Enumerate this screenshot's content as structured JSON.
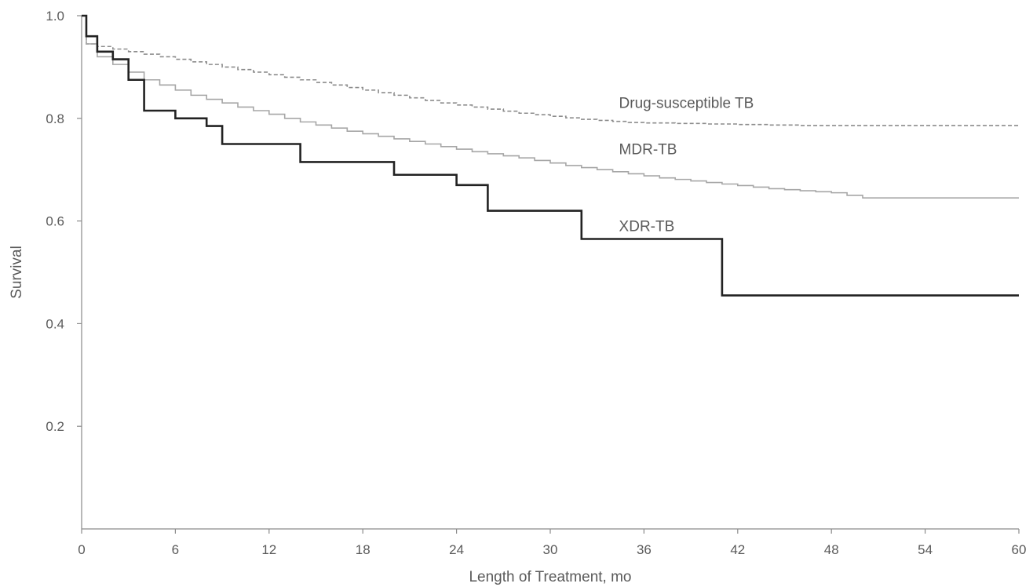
{
  "chart_data": {
    "type": "line",
    "title": "",
    "xlabel": "Length of Treatment, mo",
    "ylabel": "Survival",
    "xlim": [
      0,
      60
    ],
    "ylim": [
      0,
      1.0
    ],
    "xticks": [
      0,
      6,
      12,
      18,
      24,
      30,
      36,
      42,
      48,
      54,
      60
    ],
    "xtick_labels": [
      "0",
      "6",
      "12",
      "18",
      "24",
      "30",
      "36",
      "42",
      "48",
      "54",
      "60"
    ],
    "yticks": [
      0.2,
      0.4,
      0.6,
      0.8,
      1.0
    ],
    "ytick_labels": [
      "0.2",
      "0.4",
      "0.6",
      "0.8",
      "1.0"
    ],
    "grid": false,
    "legend": "inline labels",
    "series": [
      {
        "name": "Drug-susceptible TB",
        "label": "Drug-susceptible TB",
        "label_anchor": [
          34.4,
          0.82
        ],
        "color": "#8c8c8c",
        "style": "dashed",
        "x": [
          0,
          0.3,
          1,
          2,
          3,
          4,
          5,
          6,
          7,
          8,
          9,
          10,
          11,
          12,
          13,
          14,
          15,
          16,
          17,
          18,
          19,
          20,
          21,
          22,
          23,
          24,
          25,
          26,
          27,
          28,
          29,
          30,
          31,
          32,
          33,
          34,
          35,
          36,
          38,
          40,
          42,
          44,
          46,
          48,
          50,
          52,
          54,
          56,
          58,
          60
        ],
        "y": [
          1.0,
          0.945,
          0.94,
          0.935,
          0.93,
          0.925,
          0.92,
          0.915,
          0.91,
          0.905,
          0.9,
          0.895,
          0.89,
          0.885,
          0.88,
          0.875,
          0.87,
          0.865,
          0.86,
          0.855,
          0.85,
          0.845,
          0.84,
          0.835,
          0.83,
          0.826,
          0.822,
          0.818,
          0.814,
          0.81,
          0.807,
          0.804,
          0.801,
          0.798,
          0.796,
          0.794,
          0.792,
          0.791,
          0.79,
          0.789,
          0.788,
          0.787,
          0.786,
          0.786,
          0.786,
          0.786,
          0.786,
          0.786,
          0.786,
          0.786
        ]
      },
      {
        "name": "MDR-TB",
        "label": "MDR-TB",
        "label_anchor": [
          34.4,
          0.73
        ],
        "color": "#a6a6a6",
        "style": "solid",
        "x": [
          0,
          0.3,
          1,
          2,
          3,
          4,
          5,
          6,
          7,
          8,
          9,
          10,
          11,
          12,
          13,
          14,
          15,
          16,
          17,
          18,
          19,
          20,
          21,
          22,
          23,
          24,
          25,
          26,
          27,
          28,
          29,
          30,
          31,
          32,
          33,
          34,
          35,
          36,
          37,
          38,
          39,
          40,
          41,
          42,
          43,
          44,
          45,
          46,
          47,
          48,
          49,
          50,
          52,
          54,
          56,
          58,
          60
        ],
        "y": [
          1.0,
          0.945,
          0.92,
          0.905,
          0.89,
          0.875,
          0.865,
          0.855,
          0.845,
          0.837,
          0.83,
          0.822,
          0.815,
          0.808,
          0.8,
          0.793,
          0.787,
          0.781,
          0.775,
          0.77,
          0.765,
          0.76,
          0.755,
          0.75,
          0.745,
          0.74,
          0.735,
          0.731,
          0.727,
          0.723,
          0.718,
          0.713,
          0.708,
          0.704,
          0.7,
          0.696,
          0.692,
          0.688,
          0.684,
          0.681,
          0.678,
          0.675,
          0.672,
          0.669,
          0.666,
          0.663,
          0.661,
          0.659,
          0.657,
          0.655,
          0.65,
          0.645,
          0.645,
          0.645,
          0.645,
          0.645,
          0.645
        ]
      },
      {
        "name": "XDR-TB",
        "label": "XDR-TB",
        "label_anchor": [
          34.4,
          0.58
        ],
        "color": "#222222",
        "style": "solid-thick",
        "x": [
          0,
          0.3,
          1,
          2,
          3,
          4,
          6,
          8,
          9,
          14,
          20,
          24,
          26,
          32,
          41,
          60
        ],
        "y": [
          1.0,
          0.96,
          0.93,
          0.915,
          0.875,
          0.815,
          0.8,
          0.785,
          0.75,
          0.715,
          0.69,
          0.67,
          0.62,
          0.565,
          0.455,
          0.455
        ]
      }
    ]
  }
}
